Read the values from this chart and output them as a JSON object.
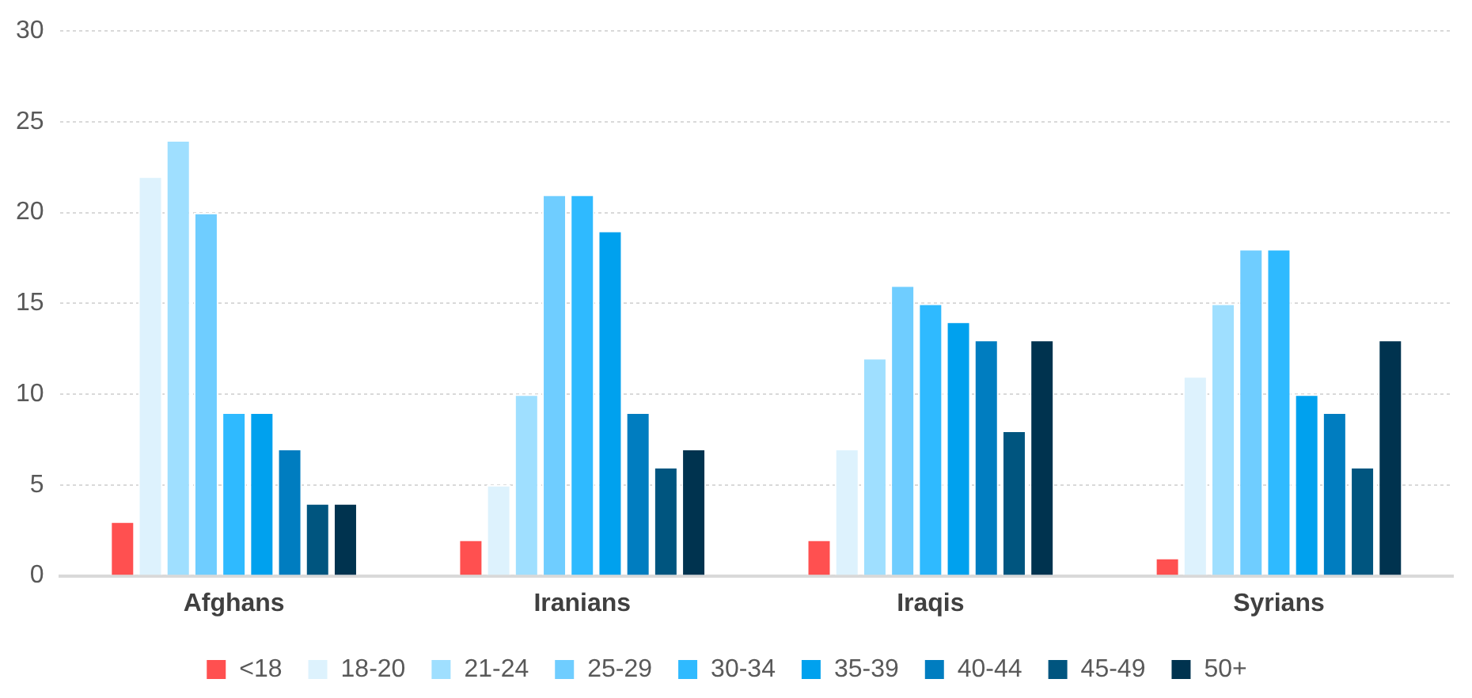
{
  "chart_data": {
    "type": "bar",
    "categories": [
      "Afghans",
      "Iranians",
      "Iraqis",
      "Syrians"
    ],
    "series": [
      {
        "name": "<18",
        "color": "#ff5050",
        "values": [
          3,
          2,
          2,
          1
        ]
      },
      {
        "name": "18-20",
        "color": "#ddf2fd",
        "values": [
          22,
          5,
          7,
          11
        ]
      },
      {
        "name": "21-24",
        "color": "#9fdfff",
        "values": [
          24,
          10,
          12,
          15
        ]
      },
      {
        "name": "25-29",
        "color": "#6fcdff",
        "values": [
          20,
          21,
          16,
          18
        ]
      },
      {
        "name": "30-34",
        "color": "#2fbaff",
        "values": [
          9,
          21,
          15,
          18
        ]
      },
      {
        "name": "35-39",
        "color": "#00a1ee",
        "values": [
          9,
          19,
          14,
          10
        ]
      },
      {
        "name": "40-44",
        "color": "#007dc0",
        "values": [
          7,
          9,
          13,
          9
        ]
      },
      {
        "name": "45-49",
        "color": "#00557f",
        "values": [
          4,
          6,
          8,
          6
        ]
      },
      {
        "name": "50+",
        "color": "#00334f",
        "values": [
          4,
          7,
          13,
          13
        ]
      }
    ],
    "ylim": [
      0,
      30
    ],
    "yticks": [
      0,
      5,
      10,
      15,
      20,
      25,
      30
    ],
    "grid": "y",
    "legend": "bottom"
  }
}
